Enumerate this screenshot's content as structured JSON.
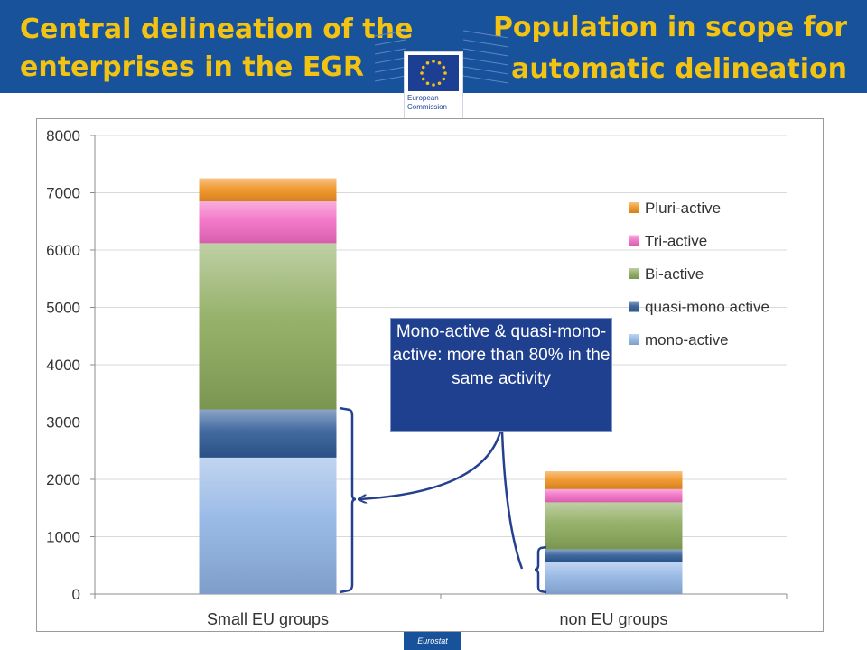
{
  "header": {
    "title_left": "Central delineation of the enterprises in the EGR",
    "title_right": "Population in scope for automatic delineation",
    "logo_line1": "European",
    "logo_line2": "Commission"
  },
  "callout": {
    "text": "Mono-active & quasi-mono-active: more than 80% in the same activity"
  },
  "footer": {
    "source": "Eurostat"
  },
  "colors": {
    "header_bg": "#17529a",
    "title_text": "#f2c312",
    "callout_bg": "#1f3f8f",
    "arrow": "#24408f"
  },
  "chart_data": {
    "type": "bar",
    "stacked": true,
    "categories": [
      "Small EU groups",
      "non EU groups"
    ],
    "series": [
      {
        "name": "mono-active",
        "values": [
          2380,
          560
        ],
        "color": "#8fb3e4"
      },
      {
        "name": "quasi-mono active",
        "values": [
          840,
          220
        ],
        "color": "#2e5a96"
      },
      {
        "name": "Bi-active",
        "values": [
          2900,
          820
        ],
        "color": "#8aa95a"
      },
      {
        "name": "Tri-active",
        "values": [
          730,
          230
        ],
        "color": "#f26bc3"
      },
      {
        "name": "Pluri-active",
        "values": [
          400,
          310
        ],
        "color": "#f0901e"
      }
    ],
    "ylim": [
      0,
      8000
    ],
    "yticks": [
      "0",
      "1000",
      "2000",
      "3000",
      "4000",
      "5000",
      "6000",
      "7000",
      "8000"
    ],
    "grid": true,
    "legend": "right",
    "legend_order": [
      "Pluri-active",
      "Tri-active",
      "Bi-active",
      "quasi-mono active",
      "mono-active"
    ]
  }
}
